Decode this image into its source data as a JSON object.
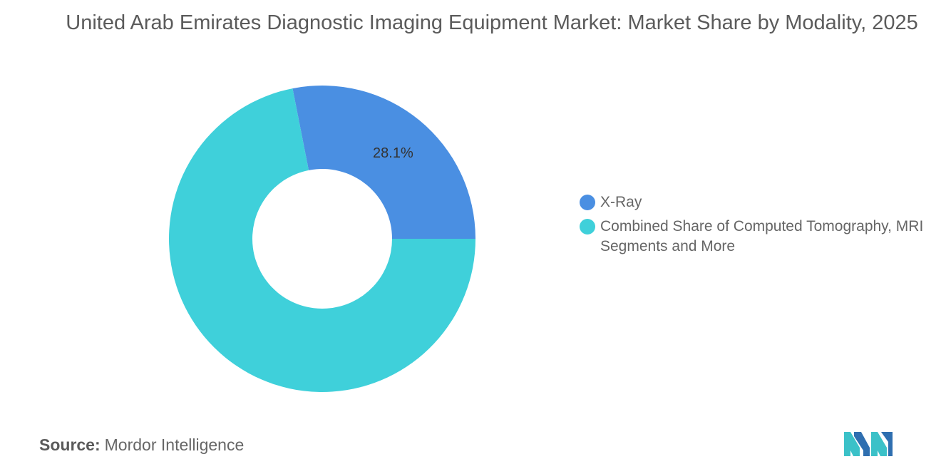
{
  "chart_data": {
    "type": "pie",
    "title": "United Arab Emirates Diagnostic Imaging Equipment Market: Market Share by Modality, 2025",
    "categories": [
      "X-Ray",
      "Combined Share of Computed Tomography, MRI Segments and More"
    ],
    "values": [
      28.1,
      71.9
    ],
    "value_labels": [
      "28.1%",
      ""
    ],
    "colors": [
      "#4a8fe2",
      "#3fd0da"
    ],
    "donut": true,
    "legend_position": "right"
  },
  "source": {
    "prefix": "Source:",
    "text": "Mordor Intelligence"
  }
}
